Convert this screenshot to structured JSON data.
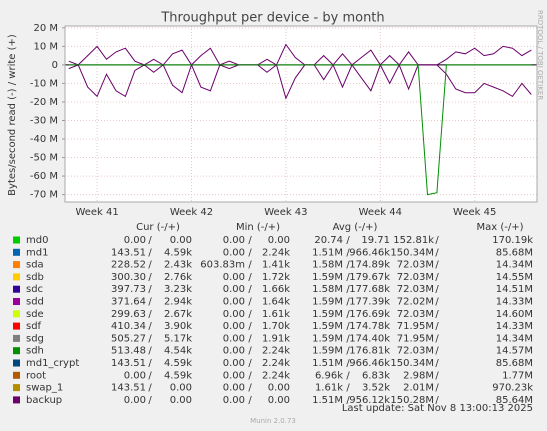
{
  "chart_data": {
    "type": "line",
    "title": "Throughput per device - by month",
    "y_label": "Bytes/second read (-) / write (+)",
    "watermark": "RRDTOOL / TOBI OETIKER",
    "ylim": [
      -74000000,
      21000000
    ],
    "yticks": [
      {
        "value": 20000000,
        "label": "20 M"
      },
      {
        "value": 10000000,
        "label": "10 M"
      },
      0,
      {
        "value": -10000000,
        "label": "-10 M"
      },
      {
        "value": -20000000,
        "label": "-20 M"
      },
      {
        "value": -30000000,
        "label": "-30 M"
      },
      {
        "value": -40000000,
        "label": "-40 M"
      },
      {
        "value": -50000000,
        "label": "-50 M"
      },
      {
        "value": -60000000,
        "label": "-60 M"
      },
      {
        "value": -70000000,
        "label": "-70 M"
      }
    ],
    "xlim": [
      40.66,
      45.66
    ],
    "xticks": [
      {
        "value": 41,
        "label": "Week 41"
      },
      {
        "value": 42,
        "label": "Week 42"
      },
      {
        "value": 43,
        "label": "Week 43"
      },
      {
        "value": 44,
        "label": "Week 44"
      },
      {
        "value": 45,
        "label": "Week 45"
      }
    ],
    "grid": true,
    "x": [
      40.7,
      40.8,
      40.9,
      41.0,
      41.1,
      41.2,
      41.3,
      41.4,
      41.5,
      41.6,
      41.7,
      41.8,
      41.9,
      42.0,
      42.1,
      42.2,
      42.3,
      42.4,
      42.5,
      42.6,
      42.7,
      42.8,
      42.9,
      43.0,
      43.1,
      43.2,
      43.3,
      43.4,
      43.5,
      43.6,
      43.7,
      43.8,
      43.9,
      44.0,
      44.1,
      44.2,
      44.3,
      44.4,
      44.5,
      44.6,
      44.7,
      44.8,
      44.9,
      45.0,
      45.1,
      45.2,
      45.3,
      45.4,
      45.5,
      45.6
    ],
    "legend_columns": [
      "Cur (-/+)",
      "Min (-/+)",
      "Avg (-/+)",
      "Max (-/+)"
    ],
    "legend_separator": "/",
    "series": [
      {
        "name": "md0",
        "color": "#00cc00",
        "cur": [
          "0.00",
          "0.00"
        ],
        "min": [
          "0.00",
          "0.00"
        ],
        "avg": [
          "20.74",
          "19.71"
        ],
        "max": [
          "152.81k",
          "170.19k"
        ]
      },
      {
        "name": "md1",
        "color": "#0066b3",
        "cur": [
          "143.51",
          "4.59k"
        ],
        "min": [
          "0.00",
          "2.24k"
        ],
        "avg": [
          "1.51M",
          "966.46k"
        ],
        "max": [
          "150.34M",
          "85.68M"
        ]
      },
      {
        "name": "sda",
        "color": "#ff8000",
        "cur": [
          "228.52",
          "2.43k"
        ],
        "min": [
          "603.83m",
          "1.41k"
        ],
        "avg": [
          "1.58M",
          "174.89k"
        ],
        "max": [
          "72.03M",
          "14.34M"
        ]
      },
      {
        "name": "sdb",
        "color": "#ffcc00",
        "cur": [
          "300.30",
          "2.76k"
        ],
        "min": [
          "0.00",
          "1.72k"
        ],
        "avg": [
          "1.59M",
          "179.67k"
        ],
        "max": [
          "72.03M",
          "14.55M"
        ]
      },
      {
        "name": "sdc",
        "color": "#330099",
        "cur": [
          "397.73",
          "3.23k"
        ],
        "min": [
          "0.00",
          "1.66k"
        ],
        "avg": [
          "1.58M",
          "177.68k"
        ],
        "max": [
          "72.03M",
          "14.51M"
        ]
      },
      {
        "name": "sdd",
        "color": "#990099",
        "cur": [
          "371.64",
          "2.94k"
        ],
        "min": [
          "0.00",
          "1.64k"
        ],
        "avg": [
          "1.59M",
          "177.39k"
        ],
        "max": [
          "72.02M",
          "14.33M"
        ]
      },
      {
        "name": "sde",
        "color": "#ccff00",
        "cur": [
          "299.63",
          "2.67k"
        ],
        "min": [
          "0.00",
          "1.61k"
        ],
        "avg": [
          "1.59M",
          "176.69k"
        ],
        "max": [
          "72.03M",
          "14.60M"
        ]
      },
      {
        "name": "sdf",
        "color": "#ff0000",
        "cur": [
          "410.34",
          "3.90k"
        ],
        "min": [
          "0.00",
          "1.70k"
        ],
        "avg": [
          "1.59M",
          "174.78k"
        ],
        "max": [
          "71.95M",
          "14.33M"
        ]
      },
      {
        "name": "sdg",
        "color": "#808080",
        "cur": [
          "505.27",
          "5.17k"
        ],
        "min": [
          "0.00",
          "1.91k"
        ],
        "avg": [
          "1.59M",
          "174.40k"
        ],
        "max": [
          "71.95M",
          "14.34M"
        ]
      },
      {
        "name": "sdh",
        "color": "#008f00",
        "cur": [
          "513.48",
          "4.54k"
        ],
        "min": [
          "0.00",
          "2.24k"
        ],
        "avg": [
          "1.59M",
          "176.81k"
        ],
        "max": [
          "72.03M",
          "14.57M"
        ],
        "read": [
          0,
          0,
          0,
          0,
          0,
          0,
          0,
          0,
          0,
          0,
          0,
          0,
          0,
          0,
          0,
          0,
          0,
          0,
          0,
          0,
          0,
          0,
          0,
          0,
          0,
          0,
          0,
          0,
          0,
          0,
          0,
          0,
          0,
          0,
          0,
          0,
          0,
          0,
          -70000000,
          -69000000,
          0,
          0,
          0,
          0,
          0,
          0,
          0,
          0,
          0,
          0
        ]
      },
      {
        "name": "md1_crypt",
        "color": "#00487d",
        "cur": [
          "143.51",
          "4.59k"
        ],
        "min": [
          "0.00",
          "2.24k"
        ],
        "avg": [
          "1.51M",
          "966.46k"
        ],
        "max": [
          "150.34M",
          "85.68M"
        ]
      },
      {
        "name": "root",
        "color": "#b35a00",
        "cur": [
          "0.00",
          "4.59k"
        ],
        "min": [
          "0.00",
          "2.24k"
        ],
        "avg": [
          "6.96k",
          "6.83k"
        ],
        "max": [
          "2.98M",
          "1.77M"
        ]
      },
      {
        "name": "swap_1",
        "color": "#b38f00",
        "cur": [
          "143.51",
          "0.00"
        ],
        "min": [
          "0.00",
          "0.00"
        ],
        "avg": [
          "1.61k",
          "3.52k"
        ],
        "max": [
          "2.01M",
          "970.23k"
        ]
      },
      {
        "name": "backup",
        "color": "#6b006b",
        "cur": [
          "0.00",
          "0.00"
        ],
        "min": [
          "0.00",
          "0.00"
        ],
        "avg": [
          "1.51M",
          "956.12k"
        ],
        "max": [
          "150.28M",
          "85.64M"
        ],
        "values": [
          2000000,
          0,
          5000000,
          10000000,
          3000000,
          7000000,
          9000000,
          2000000,
          0,
          3000000,
          0,
          6000000,
          8000000,
          0,
          5000000,
          9000000,
          0,
          2000000,
          0,
          0,
          0,
          3000000,
          0,
          11000000,
          4000000,
          0,
          0,
          5000000,
          0,
          6000000,
          0,
          4000000,
          8000000,
          0,
          5000000,
          0,
          7000000,
          0,
          0,
          0,
          3000000,
          7000000,
          6000000,
          9000000,
          5000000,
          6000000,
          10000000,
          9000000,
          5000000,
          8000000
        ],
        "read": [
          -2000000,
          0,
          -12000000,
          -17000000,
          -5000000,
          -14000000,
          -17000000,
          -3000000,
          0,
          -4000000,
          0,
          -11000000,
          -15000000,
          0,
          -12000000,
          -14000000,
          0,
          -2000000,
          0,
          0,
          0,
          -4000000,
          0,
          -18000000,
          -7000000,
          0,
          0,
          -8000000,
          0,
          -12000000,
          0,
          -7000000,
          -14000000,
          0,
          -10000000,
          0,
          -13000000,
          0,
          0,
          0,
          -5000000,
          -13000000,
          -15000000,
          -15000000,
          -10000000,
          -12000000,
          -14000000,
          -17000000,
          -10000000,
          -16000000
        ]
      }
    ],
    "last_update": "Last update: Sat Nov  8 13:00:13 2025",
    "footer": "Munin 2.0.73"
  }
}
